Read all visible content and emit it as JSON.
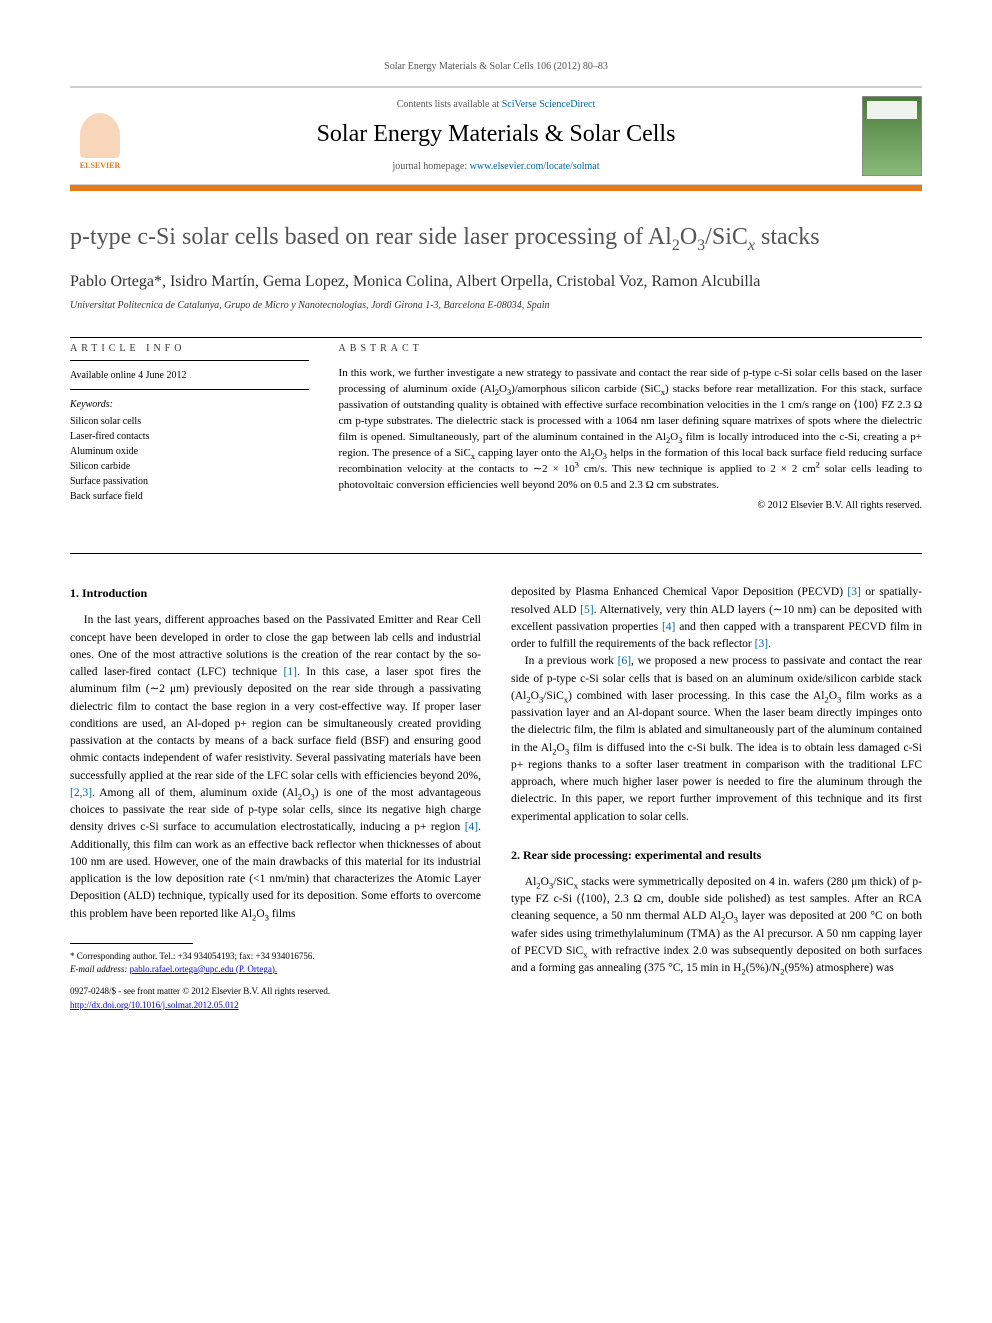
{
  "journal_ref": "Solar Energy Materials & Solar Cells 106 (2012) 80–83",
  "header": {
    "contents_prefix": "Contents lists available at ",
    "contents_link": "SciVerse ScienceDirect",
    "journal_title": "Solar Energy Materials & Solar Cells",
    "homepage_prefix": "journal homepage: ",
    "homepage_link": "www.elsevier.com/locate/solmat",
    "publisher": "ELSEVIER"
  },
  "title_html": "p-type c-Si solar cells based on rear side laser processing of Al<sub>2</sub>O<sub>3</sub>/SiC<sub><i>x</i></sub> stacks",
  "authors": "Pablo Ortega*, Isidro Martín, Gema Lopez, Monica Colina, Albert Orpella, Cristobal Voz, Ramon Alcubilla",
  "affiliation": "Universitat Politecnica de Catalunya, Grupo de Micro y Nanotecnologias, Jordi Girona 1-3, Barcelona E-08034, Spain",
  "article_info": {
    "heading": "ARTICLE INFO",
    "available": "Available online 4 June 2012",
    "keywords_label": "Keywords:",
    "keywords": "Silicon solar cells\nLaser-fired contacts\nAluminum oxide\nSilicon carbide\nSurface passivation\nBack surface field"
  },
  "abstract": {
    "heading": "ABSTRACT",
    "text_html": "In this work, we further investigate a new strategy to passivate and contact the rear side of p-type c-Si solar cells based on the laser processing of aluminum oxide (Al<sub>2</sub>O<sub>3</sub>)/amorphous silicon carbide (SiC<sub>x</sub>) stacks before rear metallization. For this stack, surface passivation of outstanding quality is obtained with effective surface recombination velocities in the 1 cm/s range on ⟨100⟩ FZ 2.3 Ω cm p-type substrates. The dielectric stack is processed with a 1064 nm laser defining square matrixes of spots where the dielectric film is opened. Simultaneously, part of the aluminum contained in the Al<sub>2</sub>O<sub>3</sub> film is locally introduced into the c-Si, creating a p+ region. The presence of a SiC<sub>x</sub> capping layer onto the Al<sub>2</sub>O<sub>3</sub> helps in the formation of this local back surface field reducing surface recombination velocity at the contacts to ∼2 × 10<sup>3</sup> cm/s. This new technique is applied to 2 × 2 cm<sup>2</sup> solar cells leading to photovoltaic conversion efficiencies well beyond 20% on 0.5 and 2.3 Ω cm substrates.",
    "copyright": "© 2012 Elsevier B.V. All rights reserved."
  },
  "section1": {
    "heading": "1. Introduction",
    "para1_html": "In the last years, different approaches based on the Passivated Emitter and Rear Cell concept have been developed in order to close the gap between lab cells and industrial ones. One of the most attractive solutions is the creation of the rear contact by the so-called laser-fired contact (LFC) technique <span class='refnum'>[1]</span>. In this case, a laser spot fires the aluminum film (∼2 μm) previously deposited on the rear side through a passivating dielectric film to contact the base region in a very cost-effective way. If proper laser conditions are used, an Al-doped p+ region can be simultaneously created providing passivation at the contacts by means of a back surface field (BSF) and ensuring good ohmic contacts independent of wafer resistivity. Several passivating materials have been successfully applied at the rear side of the LFC solar cells with efficiencies beyond 20%, <span class='refnum'>[2,3]</span>. Among all of them, aluminum oxide (Al<sub>2</sub>O<sub>3</sub>) is one of the most advantageous choices to passivate the rear side of p-type solar cells, since its negative high charge density drives c-Si surface to accumulation electrostatically, inducing a p+ region <span class='refnum'>[4]</span>. Additionally, this film can work as an effective back reflector when thicknesses of about 100 nm are used. However, one of the main drawbacks of this material for its industrial application is the low deposition rate (<1 nm/min) that characterizes the Atomic Layer Deposition (ALD) technique, typically used for its deposition. Some efforts to overcome this problem have been reported like Al<sub>2</sub>O<sub>3</sub> films",
    "para1b_html": "deposited by Plasma Enhanced Chemical Vapor Deposition (PECVD) <span class='refnum'>[3]</span> or spatially-resolved ALD <span class='refnum'>[5]</span>. Alternatively, very thin ALD layers (∼10 nm) can be deposited with excellent passivation properties <span class='refnum'>[4]</span> and then capped with a transparent PECVD film in order to fulfill the requirements of the back reflector <span class='refnum'>[3]</span>.",
    "para2_html": "In a previous work <span class='refnum'>[6]</span>, we proposed a new process to passivate and contact the rear side of p-type c-Si solar cells that is based on an aluminum oxide/silicon carbide stack (Al<sub>2</sub>O<sub>3</sub>/SiC<sub>x</sub>) combined with laser processing. In this case the Al<sub>2</sub>O<sub>3</sub> film works as a passivation layer and an Al-dopant source. When the laser beam directly impinges onto the dielectric film, the film is ablated and simultaneously part of the aluminum contained in the Al<sub>2</sub>O<sub>3</sub> film is diffused into the c-Si bulk. The idea is to obtain less damaged c-Si p+ regions thanks to a softer laser treatment in comparison with the traditional LFC approach, where much higher laser power is needed to fire the aluminum through the dielectric. In this paper, we report further improvement of this technique and its first experimental application to solar cells."
  },
  "section2": {
    "heading": "2. Rear side processing: experimental and results",
    "para1_html": "Al<sub>2</sub>O<sub>3</sub>/SiC<sub>x</sub> stacks were symmetrically deposited on 4 in. wafers (280 μm thick) of p-type FZ c-Si (⟨100⟩, 2.3 Ω cm, double side polished) as test samples. After an RCA cleaning sequence, a 50 nm thermal ALD Al<sub>2</sub>O<sub>3</sub> layer was deposited at 200 °C on both wafer sides using trimethylaluminum (TMA) as the Al precursor. A 50 nm capping layer of PECVD SiC<sub>x</sub> with refractive index 2.0 was subsequently deposited on both surfaces and a forming gas annealing (375 °C, 15 min in H<sub>2</sub>(5%)/N<sub>2</sub>(95%) atmosphere) was"
  },
  "footnote": {
    "corresponding": "* Corresponding author. Tel.: +34 934054193; fax: +34 934016756.",
    "email_label": "E-mail address:",
    "email": "pablo.rafael.ortega@upc.edu (P. Ortega)."
  },
  "footer": {
    "line1": "0927-0248/$ - see front matter © 2012 Elsevier B.V. All rights reserved.",
    "line2": "http://dx.doi.org/10.1016/j.solmat.2012.05.012"
  },
  "colors": {
    "orange": "#e67817",
    "link": "#0066aa",
    "text": "#000000",
    "gray": "#555555"
  }
}
